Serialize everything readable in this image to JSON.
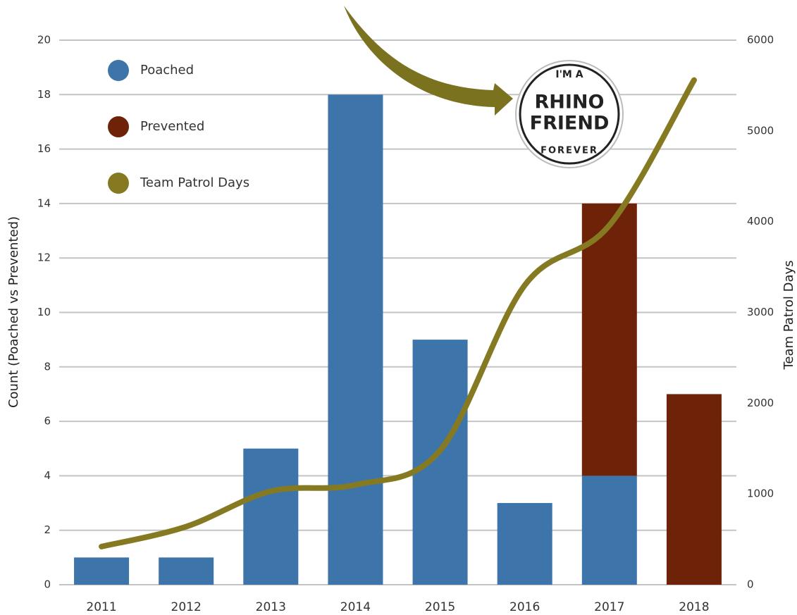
{
  "chart_data": {
    "type": "bar",
    "categories": [
      "2011",
      "2012",
      "2013",
      "2014",
      "2015",
      "2016",
      "2017",
      "2018"
    ],
    "series": [
      {
        "name": "Poached",
        "color": "#3d74aa",
        "values": [
          1,
          1,
          5,
          18,
          9,
          3,
          4,
          0
        ]
      },
      {
        "name": "Prevented",
        "color": "#6e2208",
        "values": [
          0,
          0,
          0,
          0,
          0,
          0,
          10,
          7
        ]
      },
      {
        "name": "Team Patrol Days",
        "color": "#857a22",
        "type": "line",
        "axis": "y2",
        "values": [
          420,
          640,
          1030,
          1100,
          1480,
          3300,
          3960,
          5560
        ]
      }
    ],
    "stacked": true,
    "ylabel": "Count (Poached vs Prevented)",
    "y2label": "Team Patrol Days",
    "ylim": [
      0,
      20
    ],
    "yticks": [
      0,
      2,
      4,
      6,
      8,
      10,
      12,
      14,
      16,
      18,
      20
    ],
    "y2lim": [
      0,
      6000
    ],
    "y2ticks": [
      0,
      1000,
      2000,
      3000,
      4000,
      5000,
      6000
    ],
    "grid": true,
    "legend": "upper left"
  },
  "badge": {
    "top": "I'M A",
    "line1": "RHINO",
    "line2": "FRIEND",
    "bottom": "FOREVER"
  }
}
